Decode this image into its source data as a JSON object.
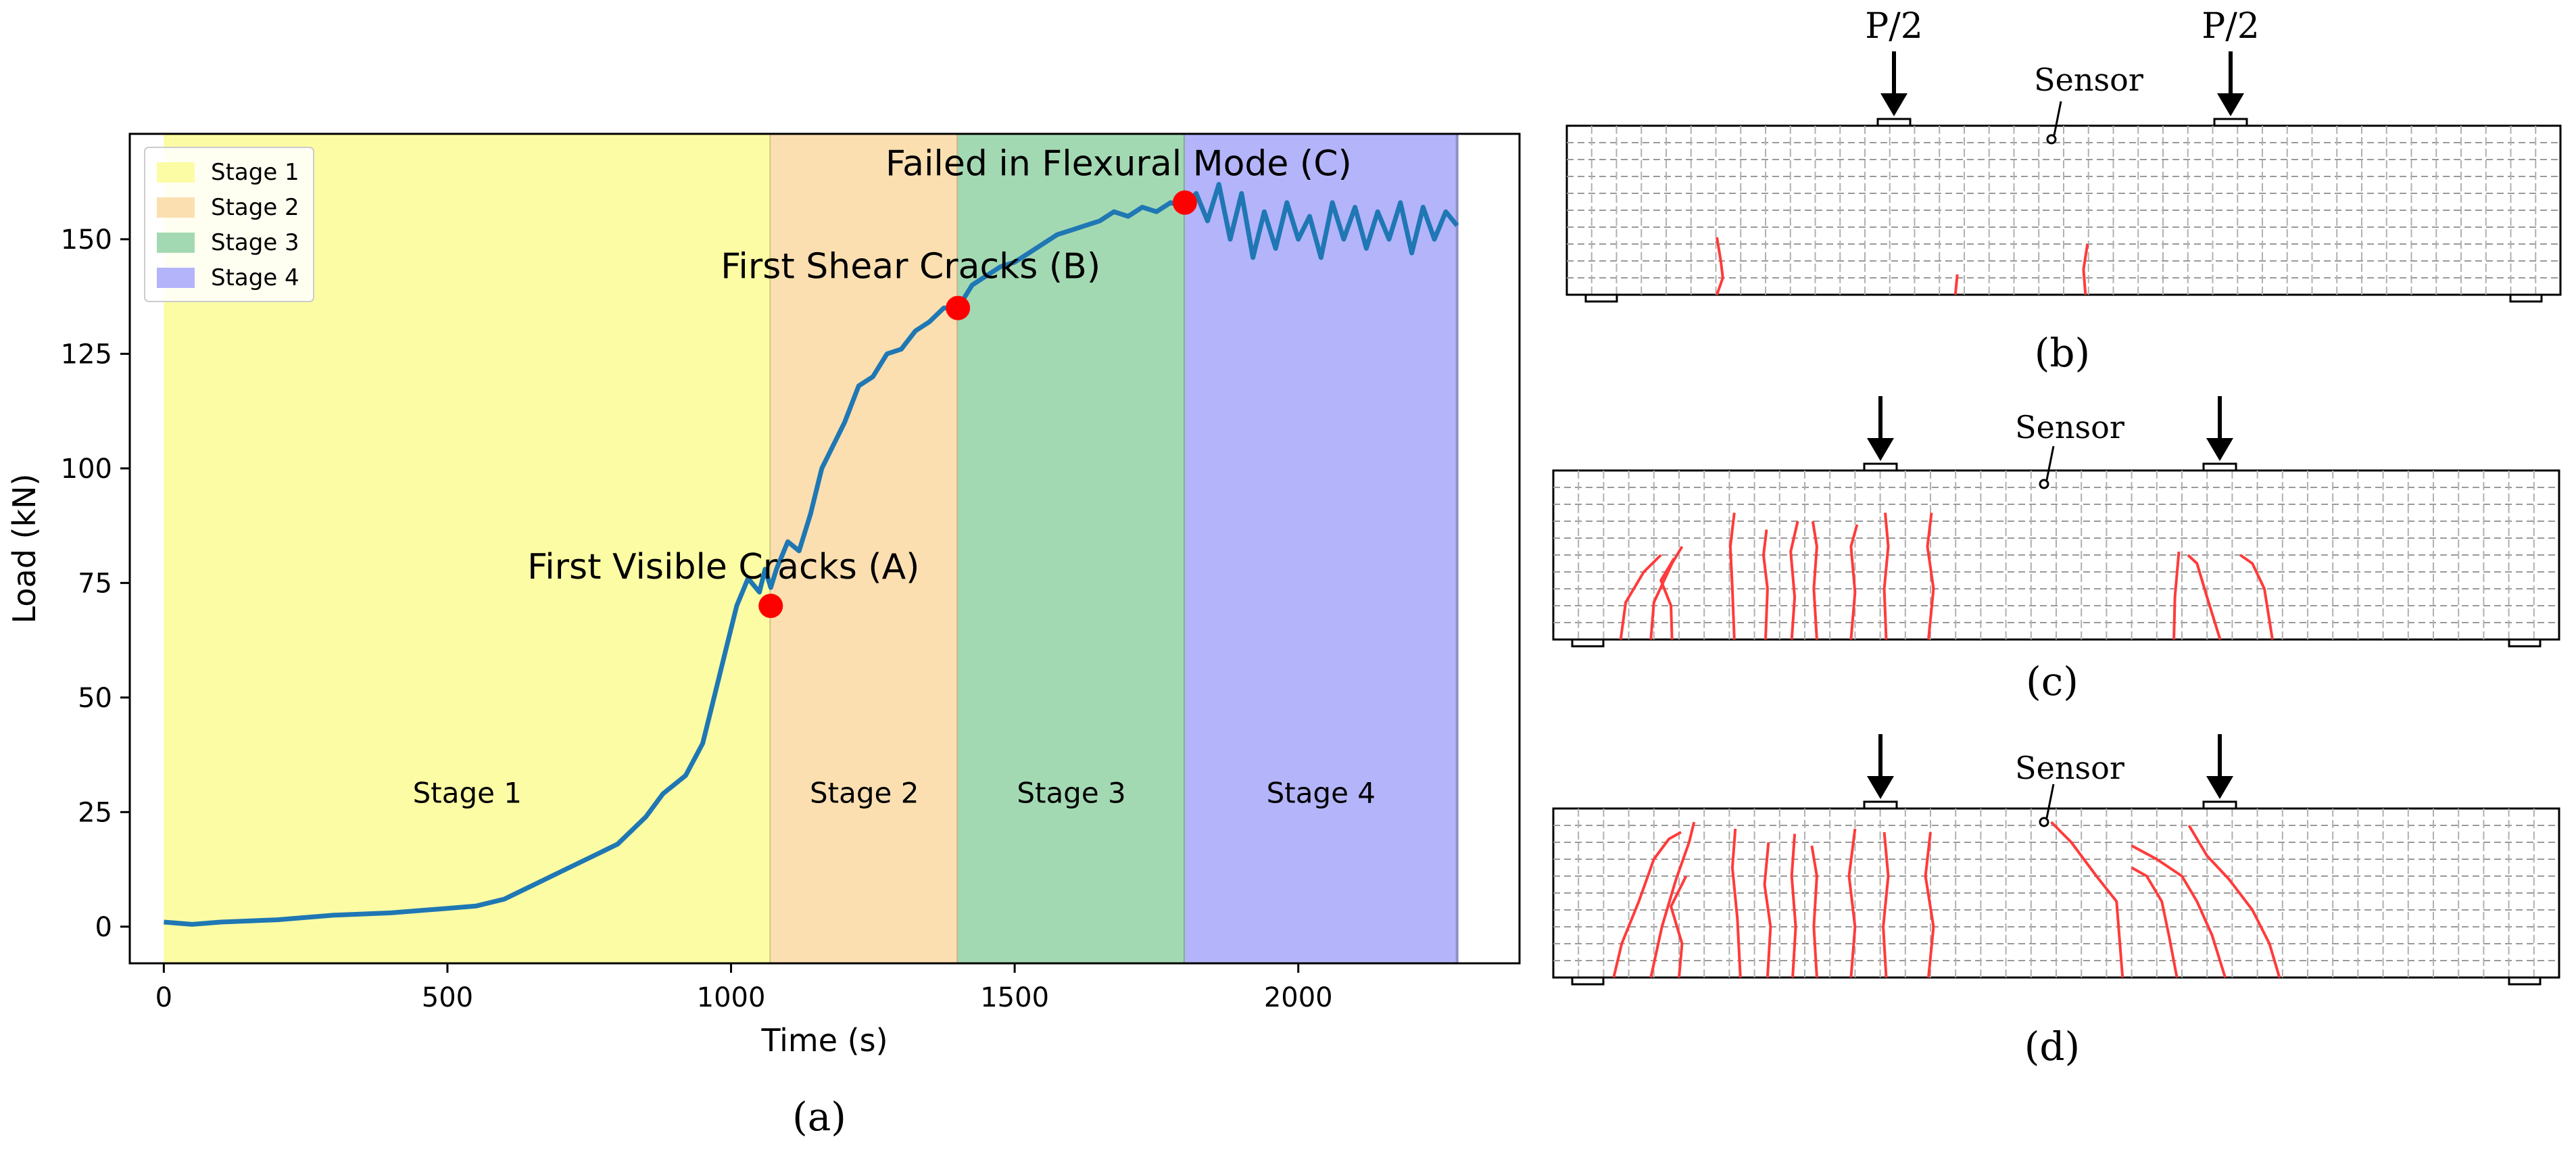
{
  "chart_data": {
    "type": "line",
    "xlabel": "Time (s)",
    "ylabel": "Load (kN)",
    "xlim": [
      -60,
      2390
    ],
    "ylim": [
      -8,
      173
    ],
    "xticks": [
      0,
      500,
      1000,
      1500,
      2000
    ],
    "yticks": [
      0,
      25,
      50,
      75,
      100,
      125,
      150
    ],
    "grid": false,
    "legend_position": "top-left",
    "stages": [
      {
        "label": "Stage 1",
        "legend": "Stage 1",
        "x0": 0,
        "x1": 1070,
        "color": "#fcfca4"
      },
      {
        "label": "Stage 2",
        "legend": "Stage 2",
        "x0": 1070,
        "x1": 1400,
        "color": "#fbdfb0"
      },
      {
        "label": "Stage 3",
        "legend": "Stage 3",
        "x0": 1400,
        "x1": 1800,
        "color": "#a3d9b2"
      },
      {
        "label": "Stage 4",
        "legend": "Stage 4",
        "x0": 1800,
        "x1": 2280,
        "color": "#b4b4fb"
      }
    ],
    "series": [
      {
        "color": "#1f77b4",
        "x": [
          0,
          50,
          100,
          200,
          300,
          400,
          500,
          550,
          600,
          650,
          700,
          750,
          800,
          850,
          880,
          920,
          950,
          970,
          990,
          1010,
          1030,
          1050,
          1060,
          1070,
          1080,
          1100,
          1120,
          1140,
          1160,
          1180,
          1200,
          1225,
          1250,
          1275,
          1300,
          1325,
          1350,
          1375,
          1400,
          1425,
          1450,
          1475,
          1500,
          1525,
          1550,
          1575,
          1600,
          1625,
          1650,
          1675,
          1700,
          1725,
          1750,
          1775,
          1800,
          1820,
          1840,
          1860,
          1880,
          1900,
          1920,
          1940,
          1960,
          1980,
          2000,
          2020,
          2040,
          2060,
          2080,
          2100,
          2120,
          2140,
          2160,
          2180,
          2200,
          2220,
          2240,
          2260,
          2280
        ],
        "y": [
          1,
          0.5,
          1,
          1.5,
          2.5,
          3,
          4,
          4.5,
          6,
          9,
          12,
          15,
          18,
          24,
          29,
          33,
          40,
          50,
          60,
          70,
          76,
          73,
          78,
          74,
          78,
          84,
          82,
          90,
          100,
          105,
          110,
          118,
          120,
          125,
          126,
          130,
          132,
          135,
          135,
          140,
          142,
          144,
          145,
          147,
          149,
          151,
          152,
          153,
          154,
          156,
          155,
          157,
          156,
          158,
          157,
          160,
          154,
          162,
          150,
          160,
          146,
          156,
          148,
          158,
          150,
          155,
          146,
          158,
          150,
          157,
          148,
          156,
          150,
          158,
          147,
          157,
          150,
          156,
          153
        ]
      }
    ],
    "annotations": [
      {
        "text": "First Visible Cracks (A)",
        "x": 1070,
        "y": 70
      },
      {
        "text": "First Shear Cracks (B)",
        "x": 1400,
        "y": 135
      },
      {
        "text": "Failed in Flexural Mode (C)",
        "x": 1800,
        "y": 158
      }
    ],
    "marker_color": "#ff0000"
  },
  "panels": {
    "a": "(a)",
    "b": "(b)",
    "c": "(c)",
    "d": "(d)"
  },
  "beam_labels": {
    "load": "P/2",
    "sensor": "Sensor"
  },
  "crack_color": "#ff3b3b"
}
